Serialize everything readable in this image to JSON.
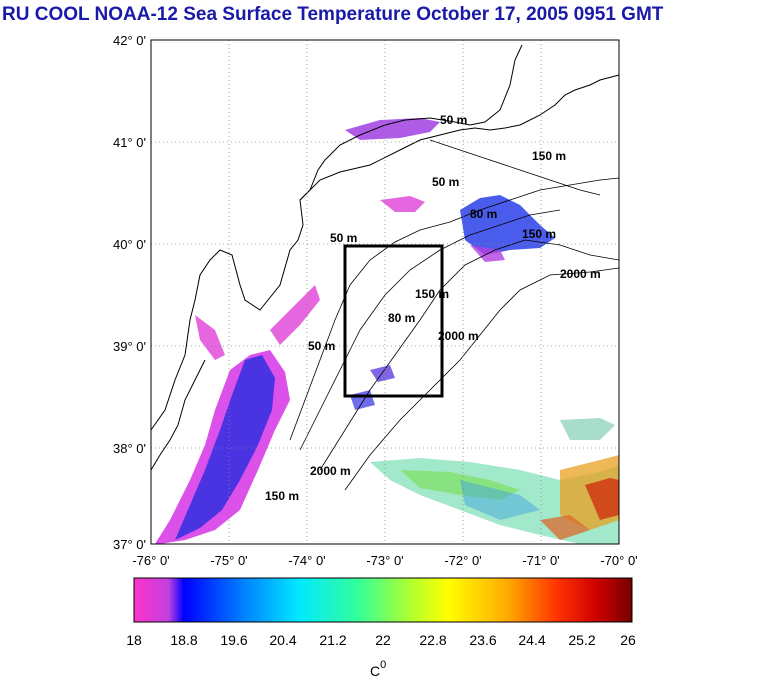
{
  "title": "RU COOL  NOAA-12 Sea Surface Temperature October 17, 2005 0951 GMT",
  "lat_labels": [
    "42° 0'",
    "41° 0'",
    "40° 0'",
    "39° 0'",
    "38° 0'",
    "37° 0'"
  ],
  "lon_labels": [
    "-76° 0'",
    "-75° 0'",
    "-74° 0'",
    "-73° 0'",
    "-72° 0'",
    "-71° 0'",
    "-70° 0'"
  ],
  "contour_labels": [
    {
      "text": "50 m"
    },
    {
      "text": "50 m"
    },
    {
      "text": "50 m"
    },
    {
      "text": "150 m"
    },
    {
      "text": "80 m"
    },
    {
      "text": "150 m"
    },
    {
      "text": "2000 m"
    },
    {
      "text": "2000 m"
    },
    {
      "text": "2000 m"
    },
    {
      "text": "50 m"
    },
    {
      "text": "80 m"
    },
    {
      "text": "150 m"
    },
    {
      "text": "150 m"
    }
  ],
  "colorbar": {
    "ticks": [
      "18",
      "18.8",
      "19.6",
      "20.4",
      "21.2",
      "22",
      "22.8",
      "23.6",
      "24.4",
      "25.2",
      "26"
    ],
    "unit": "C",
    "unit_sup": "0",
    "colors": [
      "#ff33cc",
      "#0000ff",
      "#0099ff",
      "#00ffff",
      "#33ff99",
      "#ccff33",
      "#ffff00",
      "#ffaa00",
      "#ff4400",
      "#cc0000",
      "#770000"
    ]
  }
}
